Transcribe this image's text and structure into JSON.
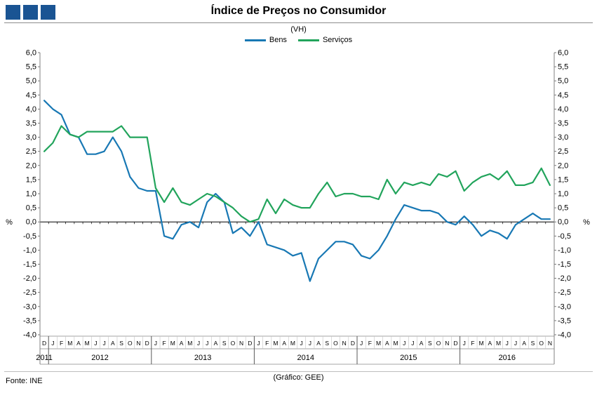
{
  "header": {
    "title": "Índice de Preços no Consumidor",
    "subtitle": "(VH)",
    "logo_color": "#1A5493"
  },
  "legend": {
    "items": [
      {
        "label": "Bens",
        "color": "#1878B4"
      },
      {
        "label": "Serviços",
        "color": "#22A45C"
      }
    ]
  },
  "footer": {
    "source": "Fonte: INE",
    "credit": "(Gráfico: GEE)"
  },
  "chart_data": {
    "type": "line",
    "title": "Índice de Preços no Consumidor",
    "subtitle": "(VH)",
    "ylabel": "%",
    "ylabel_right": "%",
    "ylim": [
      -4.0,
      6.0
    ],
    "ytick_step": 0.5,
    "decimal_separator": ",",
    "grid": "off",
    "legend_position": "top",
    "months": [
      "D",
      "J",
      "F",
      "M",
      "A",
      "M",
      "J",
      "J",
      "A",
      "S",
      "O",
      "N",
      "D",
      "J",
      "F",
      "M",
      "A",
      "M",
      "J",
      "J",
      "A",
      "S",
      "O",
      "N",
      "D",
      "J",
      "F",
      "M",
      "A",
      "M",
      "J",
      "J",
      "A",
      "S",
      "O",
      "N",
      "D",
      "J",
      "F",
      "M",
      "A",
      "M",
      "J",
      "J",
      "A",
      "S",
      "O",
      "N",
      "D",
      "J",
      "F",
      "M",
      "A",
      "M",
      "J",
      "J",
      "A",
      "S",
      "O",
      "N"
    ],
    "years": [
      {
        "label": "2011",
        "span": 1
      },
      {
        "label": "2012",
        "span": 12
      },
      {
        "label": "2013",
        "span": 12
      },
      {
        "label": "2014",
        "span": 12
      },
      {
        "label": "2015",
        "span": 12
      },
      {
        "label": "2016",
        "span": 11
      }
    ],
    "series": [
      {
        "name": "Bens",
        "color": "#1878B4",
        "values": [
          4.3,
          4.0,
          3.8,
          3.1,
          3.0,
          2.4,
          2.4,
          2.5,
          3.0,
          2.5,
          1.6,
          1.2,
          1.1,
          1.1,
          -0.5,
          -0.6,
          -0.1,
          0.0,
          -0.2,
          0.7,
          1.0,
          0.7,
          -0.4,
          -0.2,
          -0.5,
          0.0,
          -0.8,
          -0.9,
          -1.0,
          -1.2,
          -1.1,
          -2.1,
          -1.3,
          -1.0,
          -0.7,
          -0.7,
          -0.8,
          -1.2,
          -1.3,
          -1.0,
          -0.5,
          0.1,
          0.6,
          0.5,
          0.4,
          0.4,
          0.3,
          0.0,
          -0.1,
          0.2,
          -0.1,
          -0.5,
          -0.3,
          -0.4,
          -0.6,
          -0.1,
          0.1,
          0.3,
          0.1,
          0.1
        ]
      },
      {
        "name": "Serviços",
        "color": "#22A45C",
        "values": [
          2.5,
          2.8,
          3.4,
          3.1,
          3.0,
          3.2,
          3.2,
          3.2,
          3.2,
          3.4,
          3.0,
          3.0,
          3.0,
          1.2,
          0.7,
          1.2,
          0.7,
          0.6,
          0.8,
          1.0,
          0.9,
          0.7,
          0.5,
          0.2,
          0.0,
          0.1,
          0.8,
          0.3,
          0.8,
          0.6,
          0.5,
          0.5,
          1.0,
          1.4,
          0.9,
          1.0,
          1.0,
          0.9,
          0.9,
          0.8,
          1.5,
          1.0,
          1.4,
          1.3,
          1.4,
          1.3,
          1.7,
          1.6,
          1.8,
          1.1,
          1.4,
          1.6,
          1.7,
          1.5,
          1.8,
          1.3,
          1.3,
          1.4,
          1.9,
          1.3
        ]
      }
    ]
  }
}
